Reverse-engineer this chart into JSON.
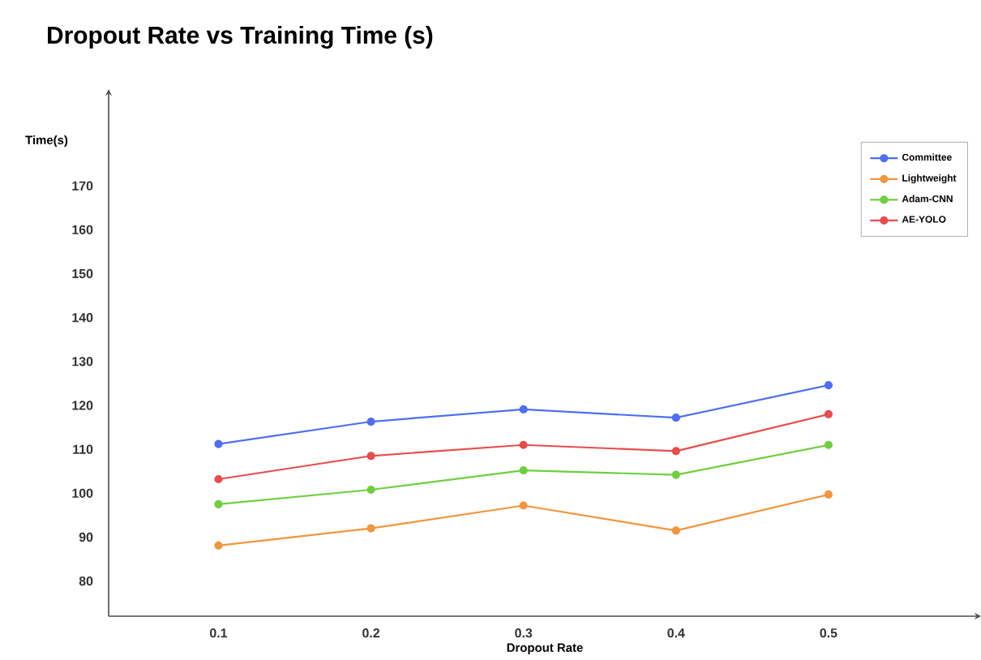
{
  "chart_data": {
    "type": "line",
    "title": "Dropout Rate vs Training Time (s)",
    "xlabel": "Dropout Rate",
    "ylabel": "Time(s)",
    "categories": [
      "0.1",
      "0.2",
      "0.3",
      "0.4",
      "0.5"
    ],
    "series": [
      {
        "name": "Committee",
        "color": "#4e6ef2",
        "values": [
          111.2,
          116.3,
          119.1,
          117.2,
          124.6
        ]
      },
      {
        "name": "Lightweight",
        "color": "#f0963c",
        "values": [
          88.1,
          92.0,
          97.2,
          91.5,
          99.7
        ]
      },
      {
        "name": "Adam-CNN",
        "color": "#6fcf3f",
        "values": [
          97.5,
          100.8,
          105.2,
          104.2,
          111.0
        ]
      },
      {
        "name": "AE-YOLO",
        "color": "#e84c4c",
        "values": [
          103.2,
          108.5,
          111.0,
          109.6,
          118.0
        ]
      }
    ],
    "ylim": [
      72,
      192
    ],
    "yticks": [
      80,
      90,
      100,
      110,
      120,
      130,
      140,
      150,
      160,
      170
    ],
    "grid": false,
    "legend": "top right",
    "marker": "circle",
    "line_style": "solid"
  }
}
